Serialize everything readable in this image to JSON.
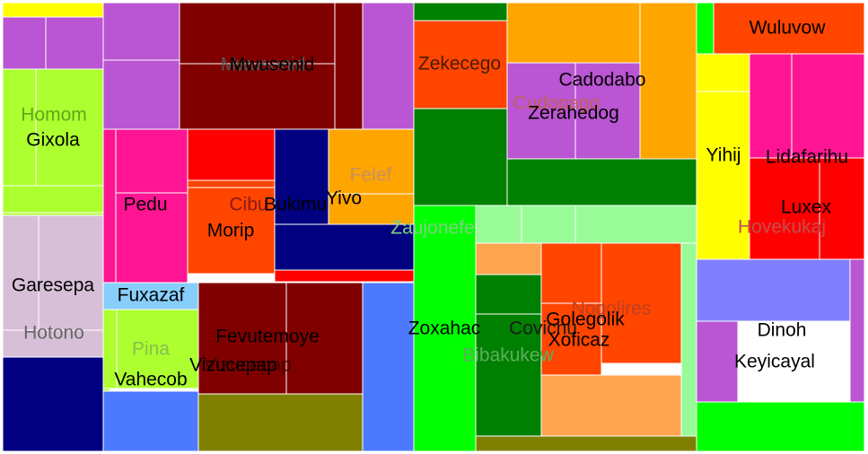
{
  "chart_data": {
    "type": "treemap",
    "title": "",
    "nodes": [
      {
        "id": "g1",
        "label": "",
        "color": "#FFFF00",
        "value": 1
      },
      {
        "id": "g2",
        "label": "",
        "color": "#BA55D3",
        "value": 1
      },
      {
        "id": "g3",
        "label": "",
        "color": "#BA55D3",
        "value": 1
      },
      {
        "id": "g4",
        "label": "Homom",
        "color": "#ADFF2F",
        "value": 1
      },
      {
        "id": "g5",
        "label": "Gixola",
        "color": "#ADFF2F",
        "value": 1
      },
      {
        "id": "g6",
        "label": "",
        "color": "#ADFF2F",
        "value": 1
      },
      {
        "id": "g7",
        "label": "",
        "color": "#ADFF2F",
        "value": 1
      },
      {
        "id": "g8",
        "label": "Garesepa",
        "color": "#D8BFD8",
        "value": 1
      },
      {
        "id": "g9",
        "label": "",
        "color": "#D8BFD8",
        "value": 1
      },
      {
        "id": "g10",
        "label": "Hotono",
        "color": "#D8BFD8",
        "value": 1
      },
      {
        "id": "g11",
        "label": "",
        "color": "#000080",
        "value": 1
      },
      {
        "id": "g12",
        "label": "",
        "color": "#BA55D3",
        "value": 1
      },
      {
        "id": "g13",
        "label": "",
        "color": "#BA55D3",
        "value": 1
      },
      {
        "id": "g14",
        "label": "Mwusenid",
        "color": "#800000",
        "value": 1
      },
      {
        "id": "g15",
        "label": "",
        "color": "#800000",
        "value": 1
      },
      {
        "id": "g16",
        "label": "",
        "color": "#800000",
        "value": 1
      },
      {
        "id": "g17",
        "label": "",
        "color": "#BA55D3",
        "value": 1
      },
      {
        "id": "g18",
        "label": "Pedu",
        "color": "#FF1493",
        "value": 1
      },
      {
        "id": "g19",
        "label": "",
        "color": "#FF1493",
        "value": 1
      },
      {
        "id": "g20",
        "label": "",
        "color": "#FF1493",
        "value": 1
      },
      {
        "id": "g21",
        "label": "",
        "color": "#FF0000",
        "value": 1
      },
      {
        "id": "g22",
        "label": "Cibu",
        "color": "#FF4500",
        "value": 1
      },
      {
        "id": "g23",
        "label": "Morip",
        "color": "#FF4500",
        "value": 1
      },
      {
        "id": "g24",
        "label": "Bukimu",
        "color": "#000080",
        "value": 1
      },
      {
        "id": "g25",
        "label": "Felef",
        "color": "#FFA500",
        "value": 1
      },
      {
        "id": "g26",
        "label": "Yivo",
        "color": "#FFA500",
        "value": 1
      },
      {
        "id": "g27",
        "label": "",
        "color": "#000080",
        "value": 1
      },
      {
        "id": "g28",
        "label": "",
        "color": "#FF0000",
        "value": 1
      },
      {
        "id": "g29",
        "label": "Fuxazaf",
        "color": "#87CEFA",
        "value": 1
      },
      {
        "id": "g30",
        "label": "Pina",
        "color": "#ADFF2F",
        "value": 1
      },
      {
        "id": "g31",
        "label": "Vahecob",
        "color": "#ADFF2F",
        "value": 1
      },
      {
        "id": "g32",
        "label": "",
        "color": "#ADFF2F",
        "value": 1
      },
      {
        "id": "g33",
        "label": "",
        "color": "#4D79FF",
        "value": 1
      },
      {
        "id": "g34",
        "label": "Fevutemoye",
        "color": "#800000",
        "value": 1
      },
      {
        "id": "g35",
        "label": "Vizucepap",
        "color": "#800000",
        "value": 1
      },
      {
        "id": "g36",
        "label": "",
        "color": "#800000",
        "value": 1
      },
      {
        "id": "g37",
        "label": "",
        "color": "#808000",
        "value": 1
      },
      {
        "id": "g38",
        "label": "",
        "color": "#4D79FF",
        "value": 1
      },
      {
        "id": "g39",
        "label": "",
        "color": "#008000",
        "value": 1
      },
      {
        "id": "g40",
        "label": "Zekecego",
        "color": "#FF4500",
        "value": 1
      },
      {
        "id": "g41",
        "label": "",
        "color": "#008000",
        "value": 1
      },
      {
        "id": "g42",
        "label": "",
        "color": "#FFA500",
        "value": 1
      },
      {
        "id": "g43",
        "label": "Cadodabo",
        "color": "#FFA500",
        "value": 1
      },
      {
        "id": "g44",
        "label": "Cudopago",
        "color": "#BA55D3",
        "value": 1
      },
      {
        "id": "g45",
        "label": "Zerahedog",
        "color": "#BA55D3",
        "value": 1
      },
      {
        "id": "g46",
        "label": "",
        "color": "#FFA500",
        "value": 1
      },
      {
        "id": "g47",
        "label": "",
        "color": "#008000",
        "value": 1
      },
      {
        "id": "g48",
        "label": "Zaujonefe",
        "color": "#98FB98",
        "value": 1
      },
      {
        "id": "g49",
        "label": "",
        "color": "#98FB98",
        "value": 1
      },
      {
        "id": "g50",
        "label": "",
        "color": "#98FB98",
        "value": 1
      },
      {
        "id": "g51",
        "label": "Zoxahac",
        "color": "#00FF00",
        "value": 1
      },
      {
        "id": "g52",
        "label": "",
        "color": "#FFA54F",
        "value": 1
      },
      {
        "id": "g53",
        "label": "",
        "color": "#008000",
        "value": 1
      },
      {
        "id": "g54",
        "label": "Covicnu",
        "color": "#008000",
        "value": 1
      },
      {
        "id": "g55",
        "label": "Bibakukew",
        "color": "#008000",
        "value": 1
      },
      {
        "id": "g56",
        "label": "Nogolires",
        "color": "#FF4500",
        "value": 1
      },
      {
        "id": "g57",
        "label": "Golegolik",
        "color": "#FF4500",
        "value": 1
      },
      {
        "id": "g58",
        "label": "Xoficaz",
        "color": "#FF4500",
        "value": 1
      },
      {
        "id": "g59",
        "label": "",
        "color": "#FFA54F",
        "value": 1
      },
      {
        "id": "g60",
        "label": "",
        "color": "#98FB98",
        "value": 1
      },
      {
        "id": "g61",
        "label": "",
        "color": "#808000",
        "value": 1
      },
      {
        "id": "g62",
        "label": "",
        "color": "#00FF00",
        "value": 1
      },
      {
        "id": "g63",
        "label": "Wuluvow",
        "color": "#FF4500",
        "value": 1
      },
      {
        "id": "g64",
        "label": "",
        "color": "#FFFF00",
        "value": 1
      },
      {
        "id": "g65",
        "label": "Yihij",
        "color": "#FFFF00",
        "value": 1
      },
      {
        "id": "g66",
        "label": "Lidafarihu",
        "color": "#FF1493",
        "value": 1
      },
      {
        "id": "g67",
        "label": "",
        "color": "#FF1493",
        "value": 1
      },
      {
        "id": "g68",
        "label": "Luxex",
        "color": "#FF0000",
        "value": 1
      },
      {
        "id": "g69",
        "label": "Hovekukaj",
        "color": "#FF0000",
        "value": 1
      },
      {
        "id": "g70",
        "label": "",
        "color": "#8080FF",
        "value": 1
      },
      {
        "id": "g71",
        "label": "Dinoh",
        "color": "#BA55D3",
        "value": 1
      },
      {
        "id": "g72",
        "label": "Keyicayal",
        "color": "#BA55D3",
        "value": 1
      },
      {
        "id": "g73",
        "label": "",
        "color": "#00FF00",
        "value": 1
      }
    ]
  }
}
